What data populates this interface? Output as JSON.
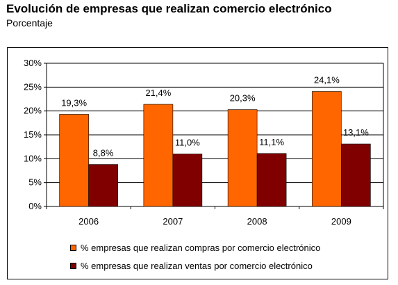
{
  "title": "Evolución de empresas que realizan comercio electrónico",
  "subtitle": "Porcentaje",
  "chart_data": {
    "type": "bar",
    "categories": [
      "2006",
      "2007",
      "2008",
      "2009"
    ],
    "series": [
      {
        "name": "% empresas que realizan compras por comercio electrónico",
        "values": [
          19.3,
          21.4,
          20.3,
          24.1
        ],
        "labels": [
          "19,3%",
          "21,4%",
          "20,3%",
          "24,1%"
        ],
        "color": "#FF6600"
      },
      {
        "name": "% empresas que realizan ventas por comercio electrónico",
        "values": [
          8.8,
          11.0,
          11.1,
          13.1
        ],
        "labels": [
          "8,8%",
          "11,0%",
          "11,1%",
          "13,1%"
        ],
        "color": "#800000"
      }
    ],
    "ylim": [
      0,
      30
    ],
    "yticks": [
      0,
      5,
      10,
      15,
      20,
      25,
      30
    ],
    "ytick_labels": [
      "0%",
      "5%",
      "10%",
      "15%",
      "20%",
      "25%",
      "30%"
    ],
    "grid": true,
    "legend_position": "bottom",
    "xlabel": "",
    "ylabel": ""
  }
}
